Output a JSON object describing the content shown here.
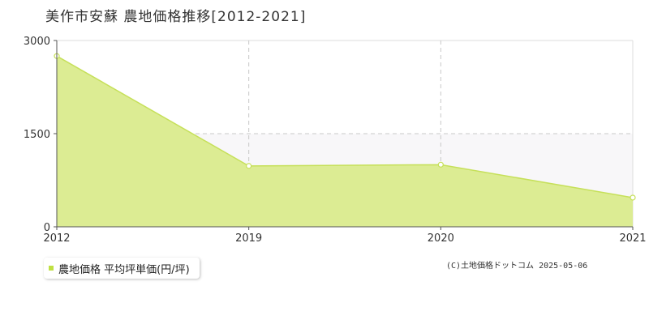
{
  "chart_data": {
    "type": "area",
    "title": "美作市安蘇 農地価格推移[2012-2021]",
    "x": [
      "2012",
      "2019",
      "2020",
      "2021"
    ],
    "series": [
      {
        "name": "農地価格 平均坪単価(円/坪)",
        "values": [
          2750,
          980,
          1000,
          470
        ]
      }
    ],
    "yticks": [
      "0",
      "1500",
      "3000"
    ],
    "ylim": [
      0,
      3000
    ],
    "grid": true,
    "legend_position": "bottom-left"
  },
  "colors": {
    "area_fill": "#dcec93",
    "line": "#c6e05a",
    "legend_swatch": "#bfe043",
    "band": "#f8f7f9",
    "grid": "#c8c8c8"
  },
  "copyright": "(C)土地価格ドットコム 2025-05-06"
}
